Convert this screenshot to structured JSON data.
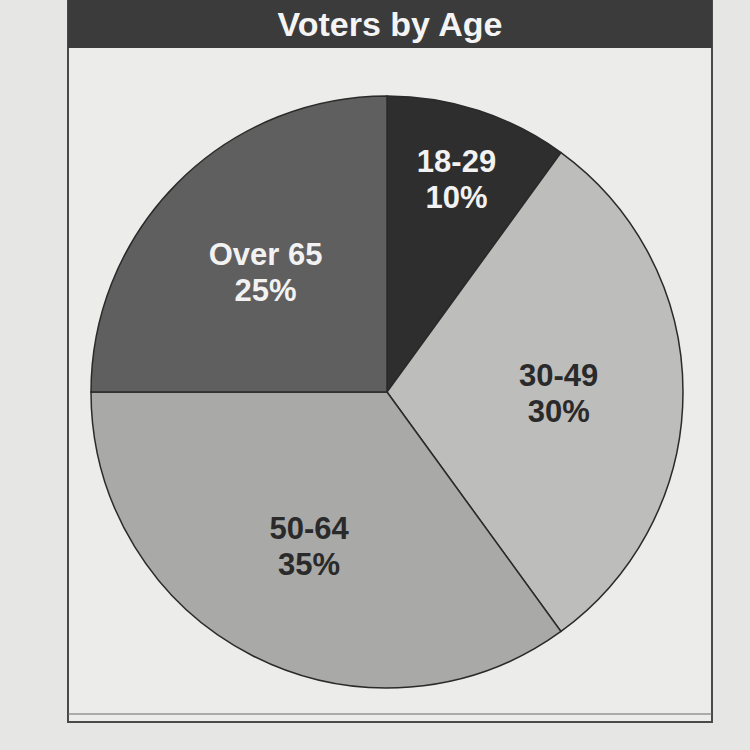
{
  "chart_data": {
    "type": "pie",
    "title": "Voters by Age",
    "categories": [
      "18-29",
      "30-49",
      "50-64",
      "Over 65"
    ],
    "values": [
      10,
      30,
      35,
      25
    ],
    "value_labels": [
      "10%",
      "30%",
      "35%",
      "25%"
    ],
    "colors": [
      "#2e2e2e",
      "#bdbdbb",
      "#a9a9a7",
      "#5f5f5f"
    ],
    "data_labels": true
  }
}
